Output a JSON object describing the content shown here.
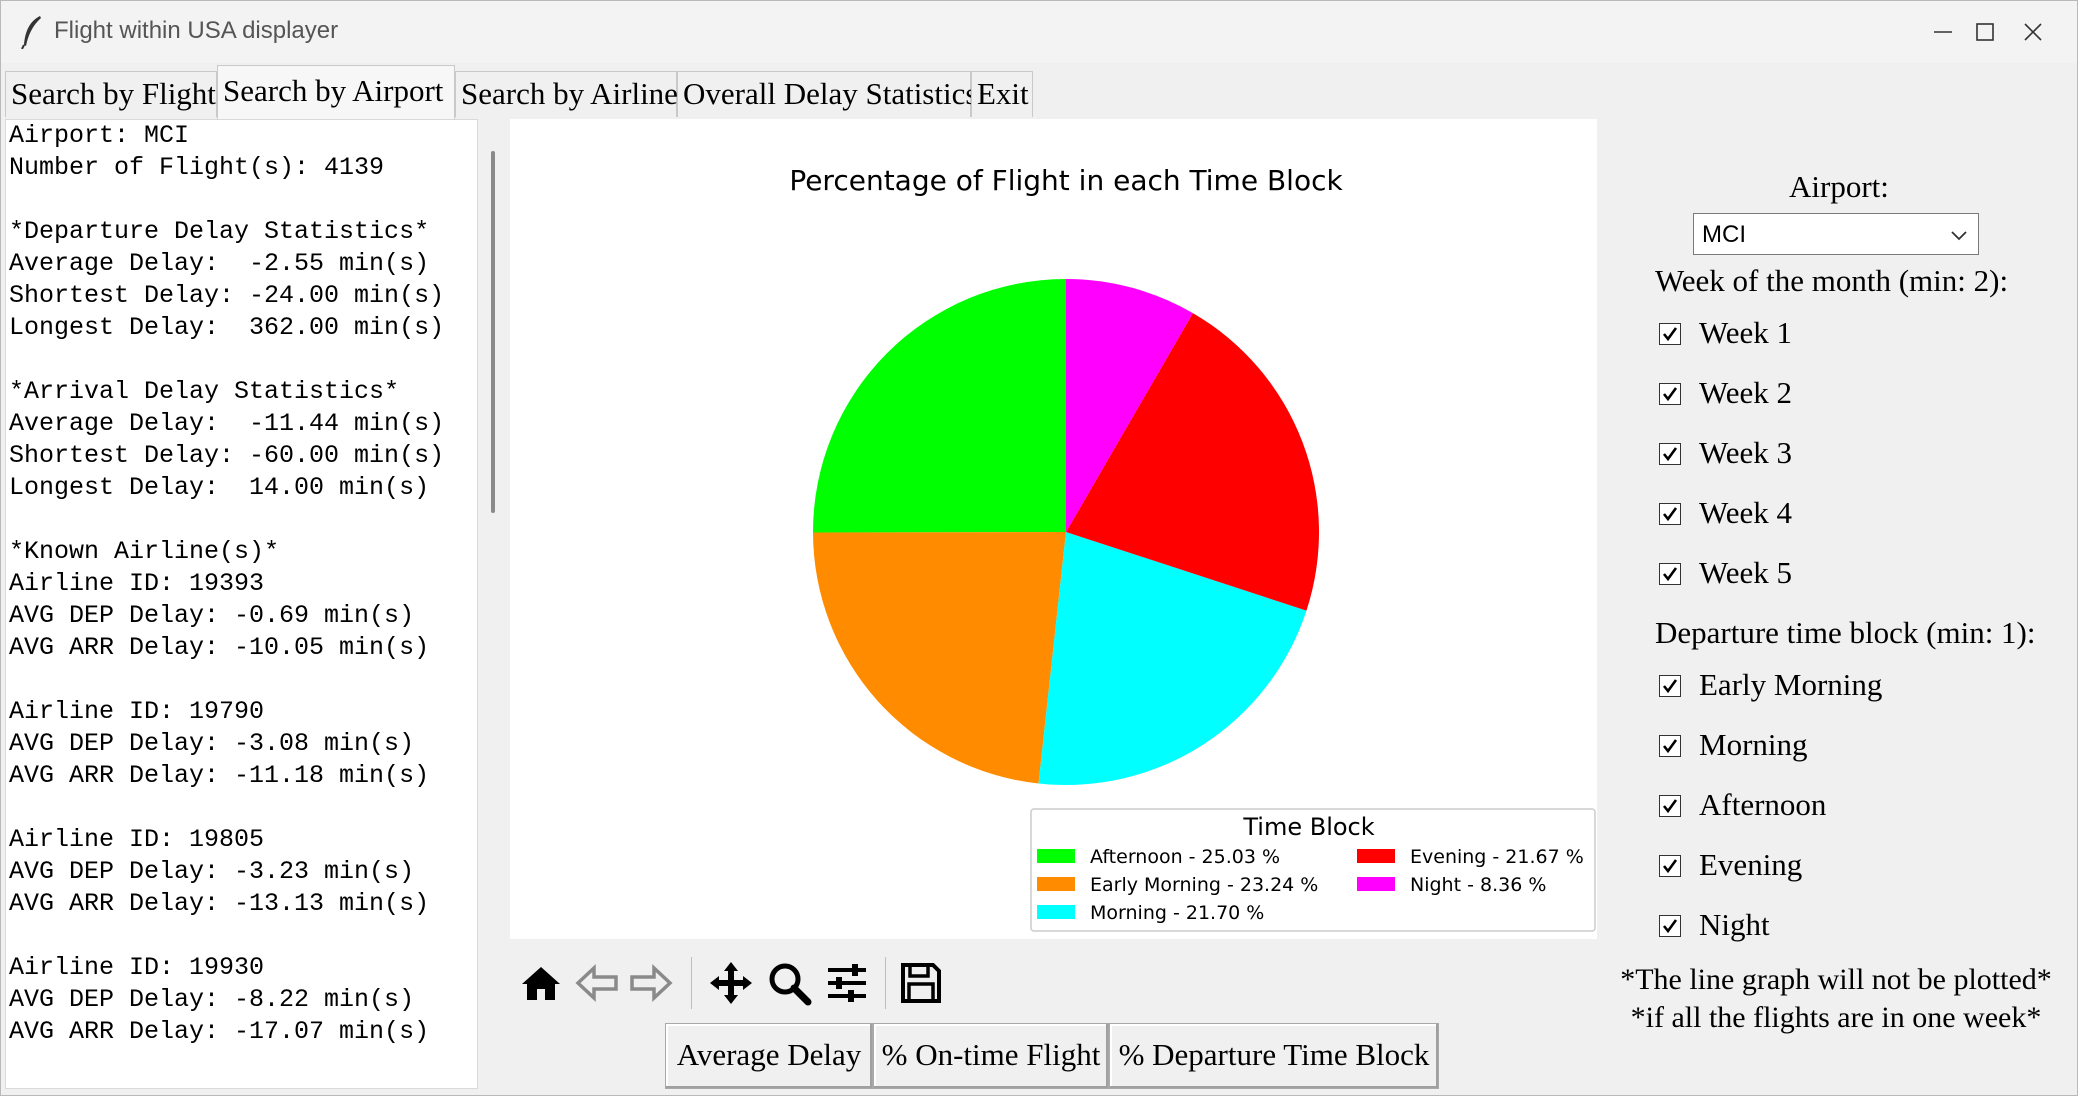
{
  "window": {
    "title": "Flight within USA displayer"
  },
  "tabs": [
    {
      "label": "Search by Flight"
    },
    {
      "label": "Search by Airport"
    },
    {
      "label": "Search by Airline"
    },
    {
      "label": "Overall Delay Statistics"
    },
    {
      "label": "Exit"
    }
  ],
  "info_panel": {
    "lines": [
      "Airport: MCI",
      "Number of Flight(s): 4139",
      "",
      "*Departure Delay Statistics*",
      "Average Delay:  -2.55 min(s)",
      "Shortest Delay: -24.00 min(s)",
      "Longest Delay:  362.00 min(s)",
      "",
      "*Arrival Delay Statistics*",
      "Average Delay:  -11.44 min(s)",
      "Shortest Delay: -60.00 min(s)",
      "Longest Delay:  14.00 min(s)",
      "",
      "*Known Airline(s)*",
      "Airline ID: 19393",
      "AVG DEP Delay: -0.69 min(s)",
      "AVG ARR Delay: -10.05 min(s)",
      "",
      "Airline ID: 19790",
      "AVG DEP Delay: -3.08 min(s)",
      "AVG ARR Delay: -11.18 min(s)",
      "",
      "Airline ID: 19805",
      "AVG DEP Delay: -3.23 min(s)",
      "AVG ARR Delay: -13.13 min(s)",
      "",
      "Airline ID: 19930",
      "AVG DEP Delay: -8.22 min(s)",
      "AVG ARR Delay: -17.07 min(s)"
    ]
  },
  "chart_data": {
    "type": "pie",
    "title": "Percentage of Flight in each Time Block",
    "legend_title": "Time Block",
    "legend_position": "bottom-right",
    "start_angle_deg": 90,
    "direction": "counterclockwise",
    "slices": [
      {
        "label": "Afternoon - 25.03 %",
        "value": 25.03,
        "color": "#00ff00"
      },
      {
        "label": "Early Morning - 23.24 %",
        "value": 23.24,
        "color": "#ff8c00"
      },
      {
        "label": "Morning - 21.70 %",
        "value": 21.7,
        "color": "#00ffff"
      },
      {
        "label": "Evening - 21.67 %",
        "value": 21.67,
        "color": "#ff0000"
      },
      {
        "label": "Night - 8.36 %",
        "value": 8.36,
        "color": "#ff00ff"
      }
    ]
  },
  "buttons": {
    "average_delay": "Average Delay",
    "on_time": "% On-time Flight",
    "departure_block": "% Departure Time Block"
  },
  "controls": {
    "airport_label": "Airport:",
    "airport_value": "MCI",
    "week_label": "Week of the month (min: 2):",
    "weeks": [
      {
        "label": "Week 1",
        "checked": true
      },
      {
        "label": "Week 2",
        "checked": true
      },
      {
        "label": "Week 3",
        "checked": true
      },
      {
        "label": "Week 4",
        "checked": true
      },
      {
        "label": "Week 5",
        "checked": true
      }
    ],
    "block_label": "Departure time block (min: 1):",
    "blocks": [
      {
        "label": "Early Morning",
        "checked": true
      },
      {
        "label": "Morning",
        "checked": true
      },
      {
        "label": "Afternoon",
        "checked": true
      },
      {
        "label": "Evening",
        "checked": true
      },
      {
        "label": "Night",
        "checked": true
      }
    ],
    "note_line1": "*The line graph will not be plotted*",
    "note_line2": "*if all the flights are in one week*"
  }
}
